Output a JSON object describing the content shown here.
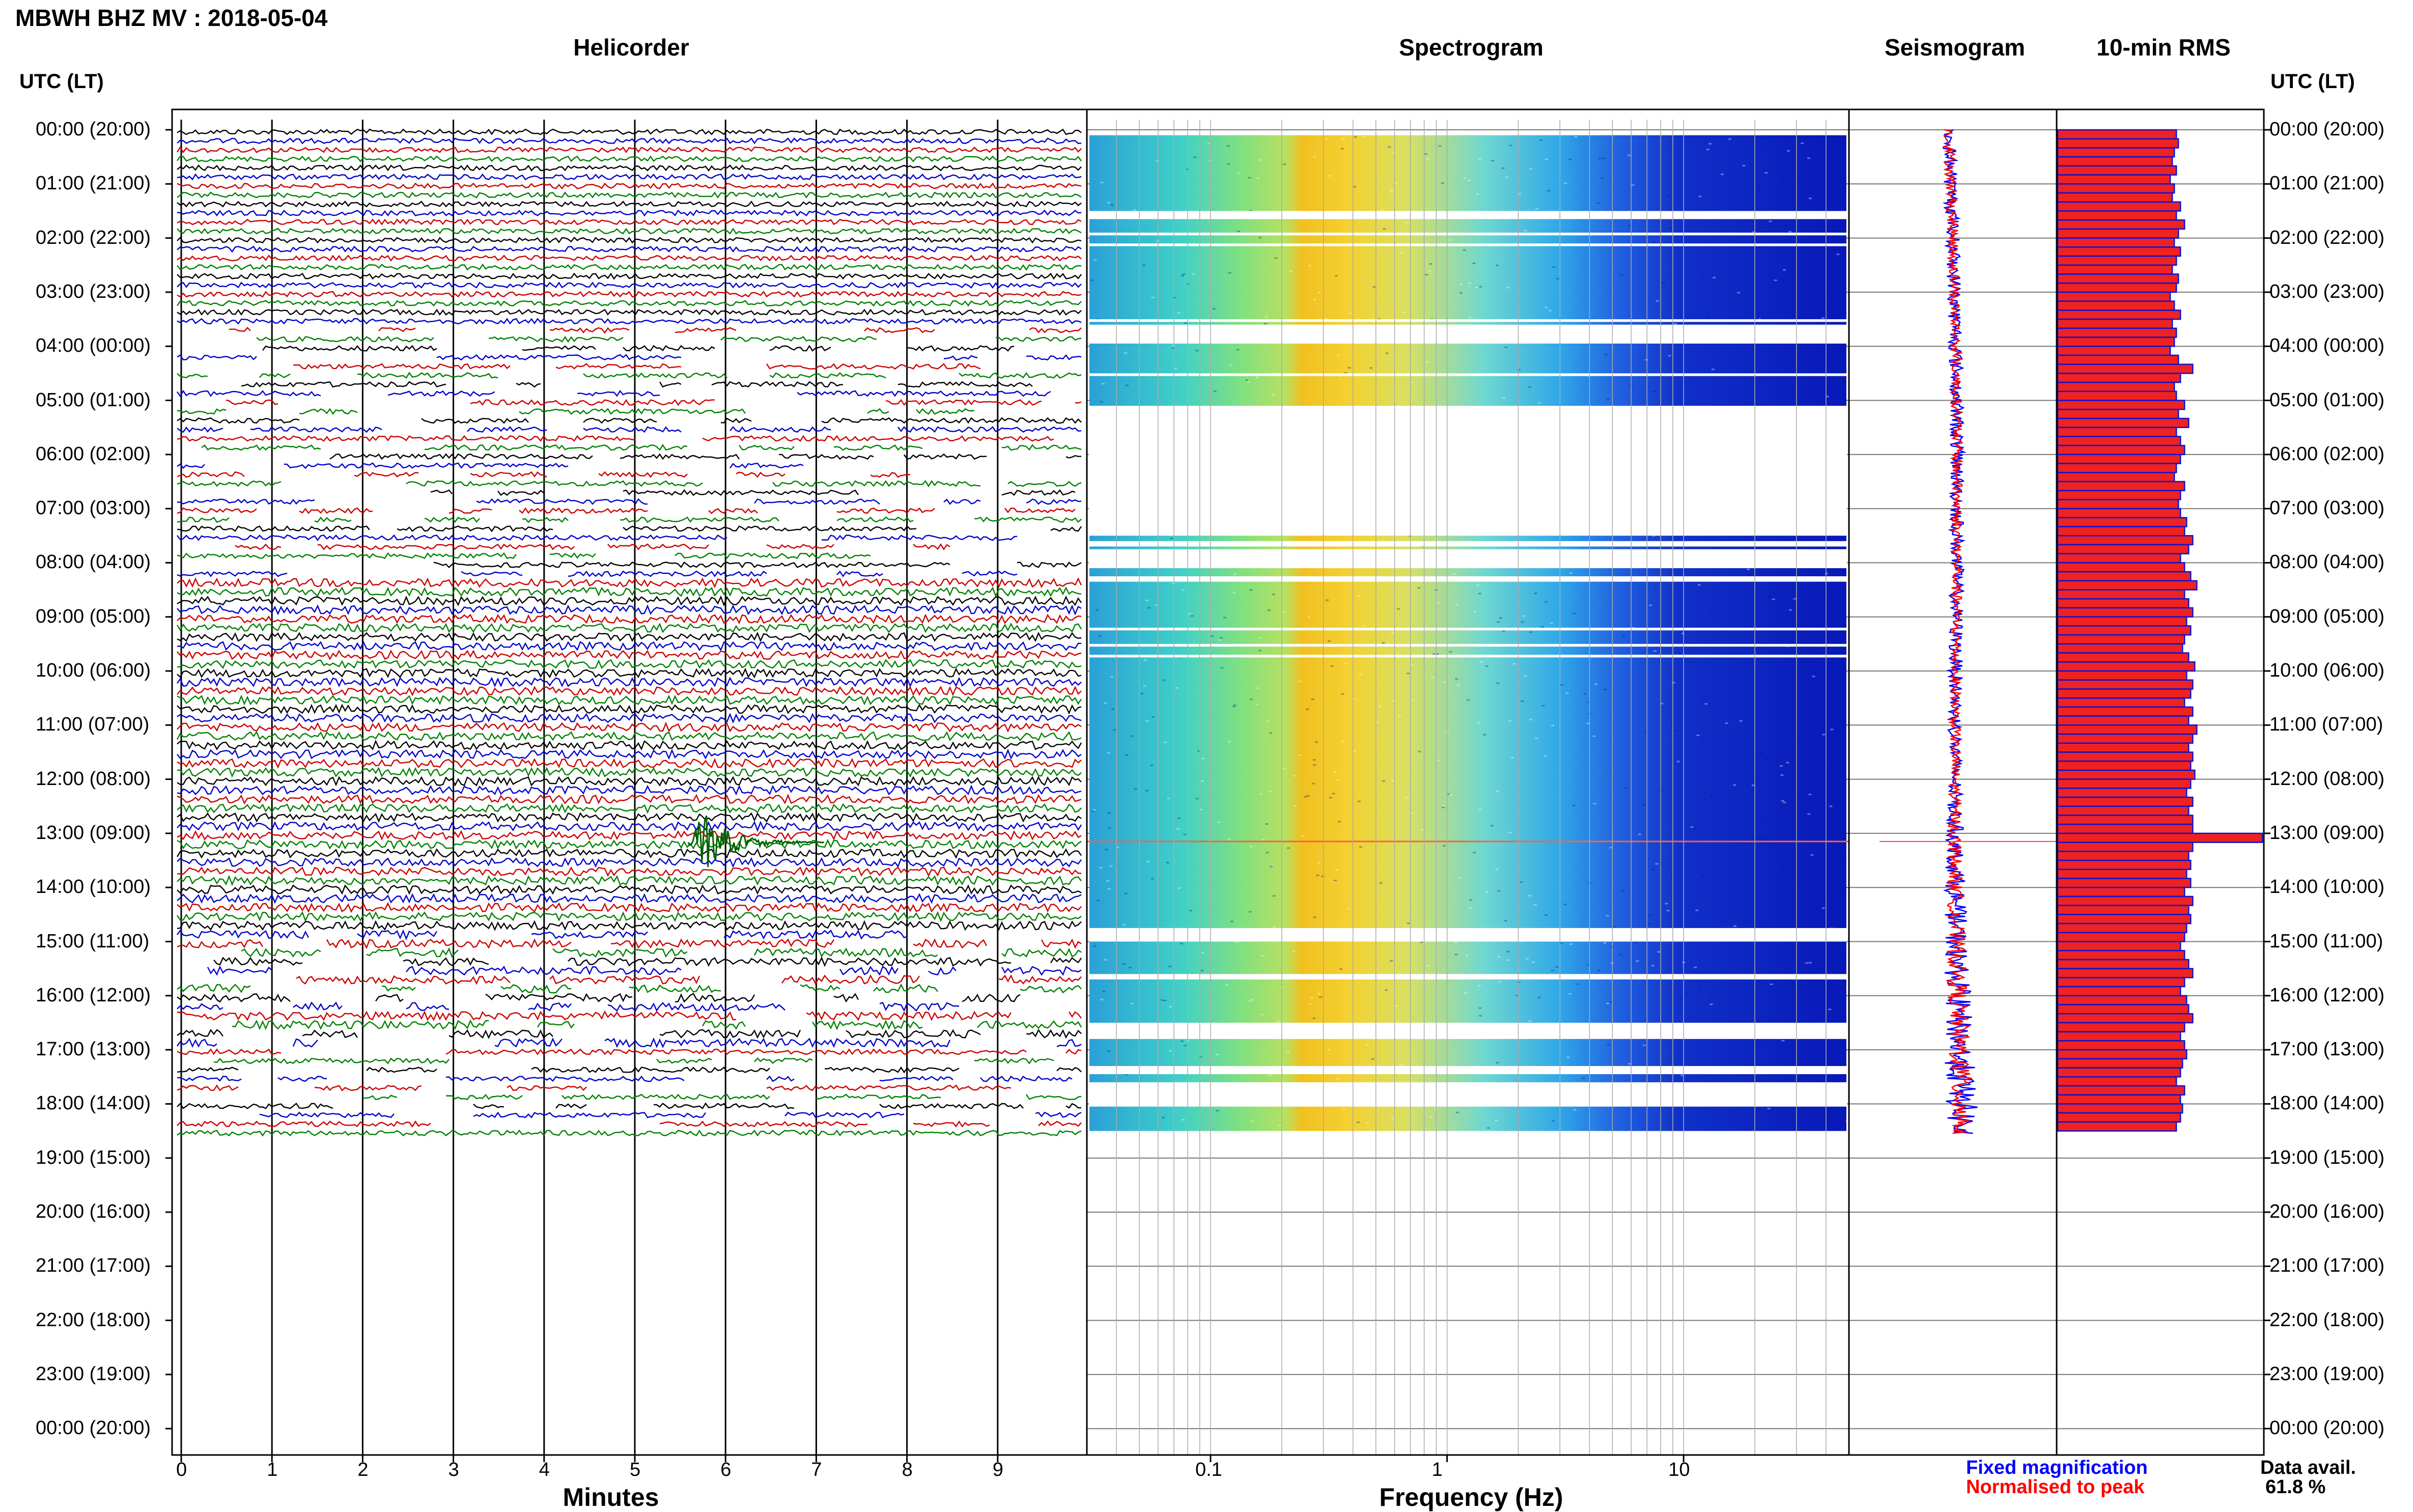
{
  "header": {
    "title": "MBWH BHZ MV : 2018-05-04"
  },
  "panels": {
    "helicorder": "Helicorder",
    "spectrogram": "Spectrogram",
    "seismogram": "Seismogram",
    "rms": "10-min RMS"
  },
  "utc_head_left": "UTC (LT)",
  "utc_head_right": "UTC (LT)",
  "time_labels": [
    "00:00 (20:00)",
    "01:00 (21:00)",
    "02:00 (22:00)",
    "03:00 (23:00)",
    "04:00 (00:00)",
    "05:00 (01:00)",
    "06:00 (02:00)",
    "07:00 (03:00)",
    "08:00 (04:00)",
    "09:00 (05:00)",
    "10:00 (06:00)",
    "11:00 (07:00)",
    "12:00 (08:00)",
    "13:00 (09:00)",
    "14:00 (10:00)",
    "15:00 (11:00)",
    "16:00 (12:00)",
    "17:00 (13:00)",
    "18:00 (14:00)",
    "19:00 (15:00)",
    "20:00 (16:00)",
    "21:00 (17:00)",
    "22:00 (18:00)",
    "23:00 (19:00)",
    "00:00 (20:00)"
  ],
  "x_axes": {
    "helicorder_label": "Minutes",
    "helicorder_ticks": [
      "0",
      "1",
      "2",
      "3",
      "4",
      "5",
      "6",
      "7",
      "8",
      "9"
    ],
    "spectrogram_label": "Frequency (Hz)",
    "spectrogram_ticks": [
      "0.1",
      "1",
      "10"
    ]
  },
  "legend": {
    "fixed": "Fixed magnification",
    "normalised": "Normalised to peak",
    "fixed_color": "#0000ff",
    "normalised_color": "#ff0000"
  },
  "data_avail": {
    "label": "Data avail.",
    "value": "61.8 %"
  },
  "chart_data": [
    {
      "type": "line",
      "name": "helicorder",
      "xlabel": "Minutes",
      "xlim": [
        0,
        10
      ],
      "trace_colors": [
        "#000000",
        "#0000cc",
        "#cc0000",
        "#008000"
      ],
      "data_hours_utc": [
        0,
        18.5
      ],
      "event": {
        "time_utc": "13:10",
        "minute": 5.7
      }
    },
    {
      "type": "heatmap",
      "name": "spectrogram",
      "xlabel": "Frequency (Hz)",
      "xscale": "log",
      "xlim": [
        0.03,
        50
      ],
      "peak_band_hz": [
        0.2,
        0.5
      ],
      "data_hours_utc": [
        0,
        18.5
      ],
      "gaps_utc": [
        [
          1.5,
          1.65
        ],
        [
          1.9,
          1.95
        ],
        [
          2.1,
          2.15
        ],
        [
          3.5,
          3.55
        ],
        [
          3.6,
          3.95
        ],
        [
          4.5,
          4.55
        ],
        [
          5.1,
          7.5
        ],
        [
          7.6,
          7.7
        ],
        [
          7.75,
          8.1
        ],
        [
          8.25,
          8.35
        ],
        [
          9.2,
          9.25
        ],
        [
          9.5,
          9.55
        ],
        [
          9.7,
          9.75
        ],
        [
          14.75,
          15
        ],
        [
          15.6,
          15.7
        ],
        [
          16.5,
          16.8
        ],
        [
          17.3,
          17.45
        ],
        [
          17.6,
          18.05
        ]
      ]
    },
    {
      "type": "line",
      "name": "seismogram",
      "series": [
        {
          "name": "Fixed magnification"
        },
        {
          "name": "Normalised to peak"
        }
      ]
    },
    {
      "type": "bar",
      "name": "10-min RMS",
      "orientation": "horizontal",
      "bin_minutes": 10,
      "values": [
        0.58,
        0.59,
        0.57,
        0.56,
        0.58,
        0.55,
        0.57,
        0.56,
        0.6,
        0.58,
        0.62,
        0.59,
        0.57,
        0.6,
        0.58,
        0.56,
        0.59,
        0.58,
        0.55,
        0.57,
        0.6,
        0.56,
        0.58,
        0.57,
        0.55,
        0.59,
        0.66,
        0.6,
        0.57,
        0.58,
        0.62,
        0.59,
        0.64,
        0.58,
        0.6,
        0.62,
        0.6,
        0.58,
        0.57,
        0.62,
        0.6,
        0.59,
        0.6,
        0.63,
        0.62,
        0.66,
        0.64,
        0.6,
        0.62,
        0.65,
        0.68,
        0.62,
        0.64,
        0.66,
        0.63,
        0.65,
        0.62,
        0.61,
        0.64,
        0.67,
        0.63,
        0.66,
        0.65,
        0.62,
        0.66,
        0.64,
        0.68,
        0.66,
        0.64,
        0.66,
        0.65,
        0.67,
        0.65,
        0.63,
        0.66,
        0.64,
        0.66,
        0.66,
        1.0,
        0.66,
        0.64,
        0.65,
        0.63,
        0.65,
        0.62,
        0.66,
        0.64,
        0.65,
        0.63,
        0.62,
        0.6,
        0.62,
        0.64,
        0.66,
        0.62,
        0.6,
        0.63,
        0.64,
        0.66,
        0.62,
        0.6,
        0.62,
        0.63,
        0.61,
        0.6,
        0.58,
        0.62,
        0.6,
        0.61,
        0.6,
        0.58
      ]
    }
  ]
}
